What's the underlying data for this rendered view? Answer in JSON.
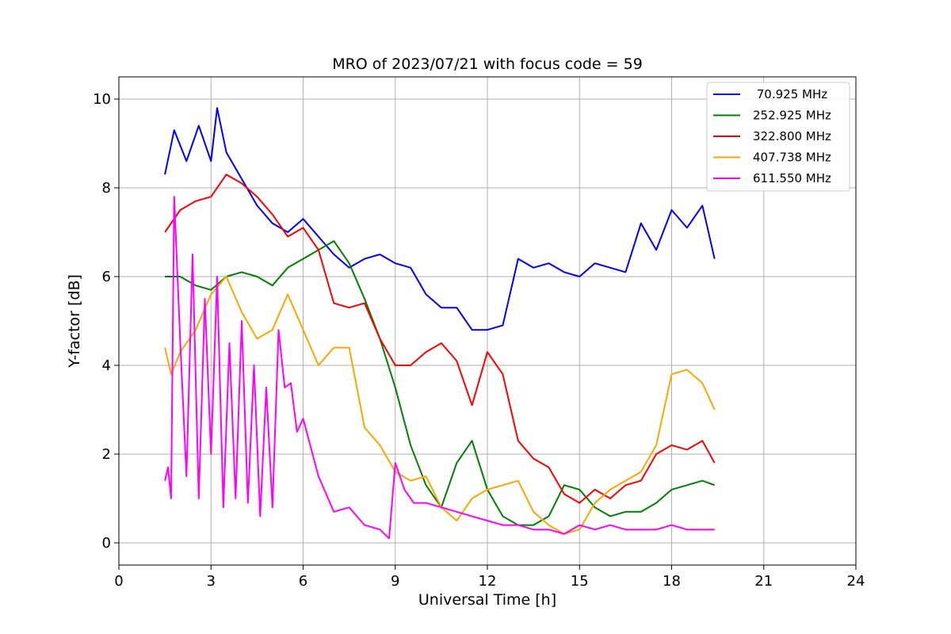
{
  "chart_data": {
    "type": "line",
    "title": "MRO of 2023/07/21 with focus code = 59",
    "xlabel": "Universal Time [h]",
    "ylabel": "Y-factor [dB]",
    "xlim": [
      0,
      24
    ],
    "ylim": [
      -0.5,
      10.5
    ],
    "xticks": [
      0,
      3,
      6,
      9,
      12,
      15,
      18,
      21,
      24
    ],
    "xtick_labels": [
      "0",
      "3",
      "6",
      "9",
      "12",
      "15",
      "18",
      "21",
      "24"
    ],
    "yticks": [
      0,
      2,
      4,
      6,
      8,
      10
    ],
    "ytick_labels": [
      "0",
      "2",
      "4",
      "6",
      "8",
      "10"
    ],
    "grid": true,
    "legend_position": "top-right",
    "series": [
      {
        "name": " 70.925 MHz",
        "color": "#0000ff",
        "x": [
          1.5,
          1.8,
          2.2,
          2.6,
          3.0,
          3.2,
          3.5,
          4.0,
          4.5,
          5.0,
          5.5,
          6.0,
          6.5,
          7.0,
          7.5,
          8.0,
          8.5,
          9.0,
          9.5,
          10.0,
          10.5,
          11.0,
          11.5,
          12.0,
          12.5,
          13.0,
          13.5,
          14.0,
          14.5,
          15.0,
          15.5,
          16.0,
          16.5,
          17.0,
          17.5,
          18.0,
          18.5,
          19.0,
          19.4
        ],
        "y": [
          8.3,
          9.3,
          8.6,
          9.4,
          8.6,
          9.8,
          8.8,
          8.2,
          7.6,
          7.2,
          7.0,
          7.3,
          6.9,
          6.5,
          6.2,
          6.4,
          6.5,
          6.3,
          6.2,
          5.6,
          5.3,
          5.3,
          4.8,
          4.8,
          4.9,
          6.4,
          6.2,
          6.3,
          6.1,
          6.0,
          6.3,
          6.2,
          6.1,
          7.2,
          6.6,
          7.5,
          7.1,
          7.6,
          6.4
        ]
      },
      {
        "name": "252.925 MHz",
        "color": "#008000",
        "x": [
          1.5,
          2.0,
          2.5,
          3.0,
          3.5,
          4.0,
          4.5,
          5.0,
          5.5,
          6.0,
          6.5,
          7.0,
          7.5,
          8.0,
          8.5,
          9.0,
          9.5,
          10.0,
          10.5,
          11.0,
          11.5,
          12.0,
          12.5,
          13.0,
          13.5,
          14.0,
          14.5,
          15.0,
          15.5,
          16.0,
          16.5,
          17.0,
          17.5,
          18.0,
          18.5,
          19.0,
          19.4
        ],
        "y": [
          6.0,
          6.0,
          5.8,
          5.7,
          6.0,
          6.1,
          6.0,
          5.8,
          6.2,
          6.4,
          6.6,
          6.8,
          6.3,
          5.5,
          4.6,
          3.5,
          2.2,
          1.3,
          0.8,
          1.8,
          2.3,
          1.2,
          0.6,
          0.4,
          0.4,
          0.6,
          1.3,
          1.2,
          0.8,
          0.6,
          0.7,
          0.7,
          0.9,
          1.2,
          1.3,
          1.4,
          1.3
        ]
      },
      {
        "name": "322.800 MHz",
        "color": "#ff0000",
        "x": [
          1.5,
          2.0,
          2.5,
          3.0,
          3.5,
          4.0,
          4.5,
          5.0,
          5.5,
          6.0,
          6.5,
          7.0,
          7.5,
          8.0,
          8.5,
          9.0,
          9.5,
          10.0,
          10.5,
          11.0,
          11.5,
          12.0,
          12.5,
          13.0,
          13.5,
          14.0,
          14.5,
          15.0,
          15.5,
          16.0,
          16.5,
          17.0,
          17.5,
          18.0,
          18.5,
          19.0,
          19.4
        ],
        "y": [
          7.0,
          7.5,
          7.7,
          7.8,
          8.3,
          8.1,
          7.8,
          7.4,
          6.9,
          7.1,
          6.6,
          5.4,
          5.3,
          5.4,
          4.6,
          4.0,
          4.0,
          4.3,
          4.5,
          4.1,
          3.1,
          4.3,
          3.8,
          2.3,
          1.9,
          1.7,
          1.1,
          0.9,
          1.2,
          1.0,
          1.3,
          1.4,
          2.0,
          2.2,
          2.1,
          2.3,
          1.8
        ]
      },
      {
        "name": "407.738 MHz",
        "color": "#ffa500",
        "x": [
          1.5,
          1.7,
          2.0,
          2.5,
          3.0,
          3.5,
          4.0,
          4.5,
          5.0,
          5.5,
          6.0,
          6.5,
          7.0,
          7.5,
          8.0,
          8.5,
          9.0,
          9.5,
          10.0,
          10.5,
          11.0,
          11.5,
          12.0,
          12.5,
          13.0,
          13.5,
          14.0,
          14.5,
          15.0,
          15.5,
          16.0,
          16.5,
          17.0,
          17.5,
          18.0,
          18.5,
          19.0,
          19.4
        ],
        "y": [
          4.4,
          3.8,
          4.3,
          4.8,
          5.6,
          6.0,
          5.2,
          4.6,
          4.8,
          5.6,
          4.8,
          4.0,
          4.4,
          4.4,
          2.6,
          2.2,
          1.6,
          1.4,
          1.5,
          0.8,
          0.5,
          1.0,
          1.2,
          1.3,
          1.4,
          0.7,
          0.4,
          0.2,
          0.3,
          0.9,
          1.2,
          1.4,
          1.6,
          2.2,
          3.8,
          3.9,
          3.6,
          3.0
        ]
      },
      {
        "name": "611.550 MHz",
        "color": "#ff00ff",
        "x": [
          1.5,
          1.6,
          1.7,
          1.8,
          2.0,
          2.2,
          2.4,
          2.6,
          2.8,
          3.0,
          3.2,
          3.4,
          3.6,
          3.8,
          4.0,
          4.2,
          4.4,
          4.6,
          4.8,
          5.0,
          5.2,
          5.4,
          5.6,
          5.8,
          6.0,
          6.5,
          7.0,
          7.5,
          8.0,
          8.5,
          8.8,
          9.0,
          9.3,
          9.6,
          10.0,
          10.5,
          11.0,
          11.5,
          12.0,
          12.5,
          13.0,
          13.5,
          14.0,
          14.5,
          15.0,
          15.5,
          16.0,
          16.5,
          17.0,
          17.5,
          18.0,
          18.5,
          19.0,
          19.4
        ],
        "y": [
          1.4,
          1.7,
          1.0,
          7.8,
          4.5,
          1.5,
          6.5,
          1.0,
          5.5,
          2.0,
          6.0,
          0.8,
          4.5,
          1.0,
          5.0,
          0.9,
          4.0,
          0.6,
          3.5,
          0.8,
          4.8,
          3.5,
          3.6,
          2.5,
          2.8,
          1.5,
          0.7,
          0.8,
          0.4,
          0.3,
          0.1,
          1.8,
          1.2,
          0.9,
          0.9,
          0.8,
          0.7,
          0.6,
          0.5,
          0.4,
          0.4,
          0.3,
          0.3,
          0.2,
          0.4,
          0.3,
          0.4,
          0.3,
          0.3,
          0.3,
          0.4,
          0.3,
          0.3,
          0.3
        ]
      }
    ]
  }
}
